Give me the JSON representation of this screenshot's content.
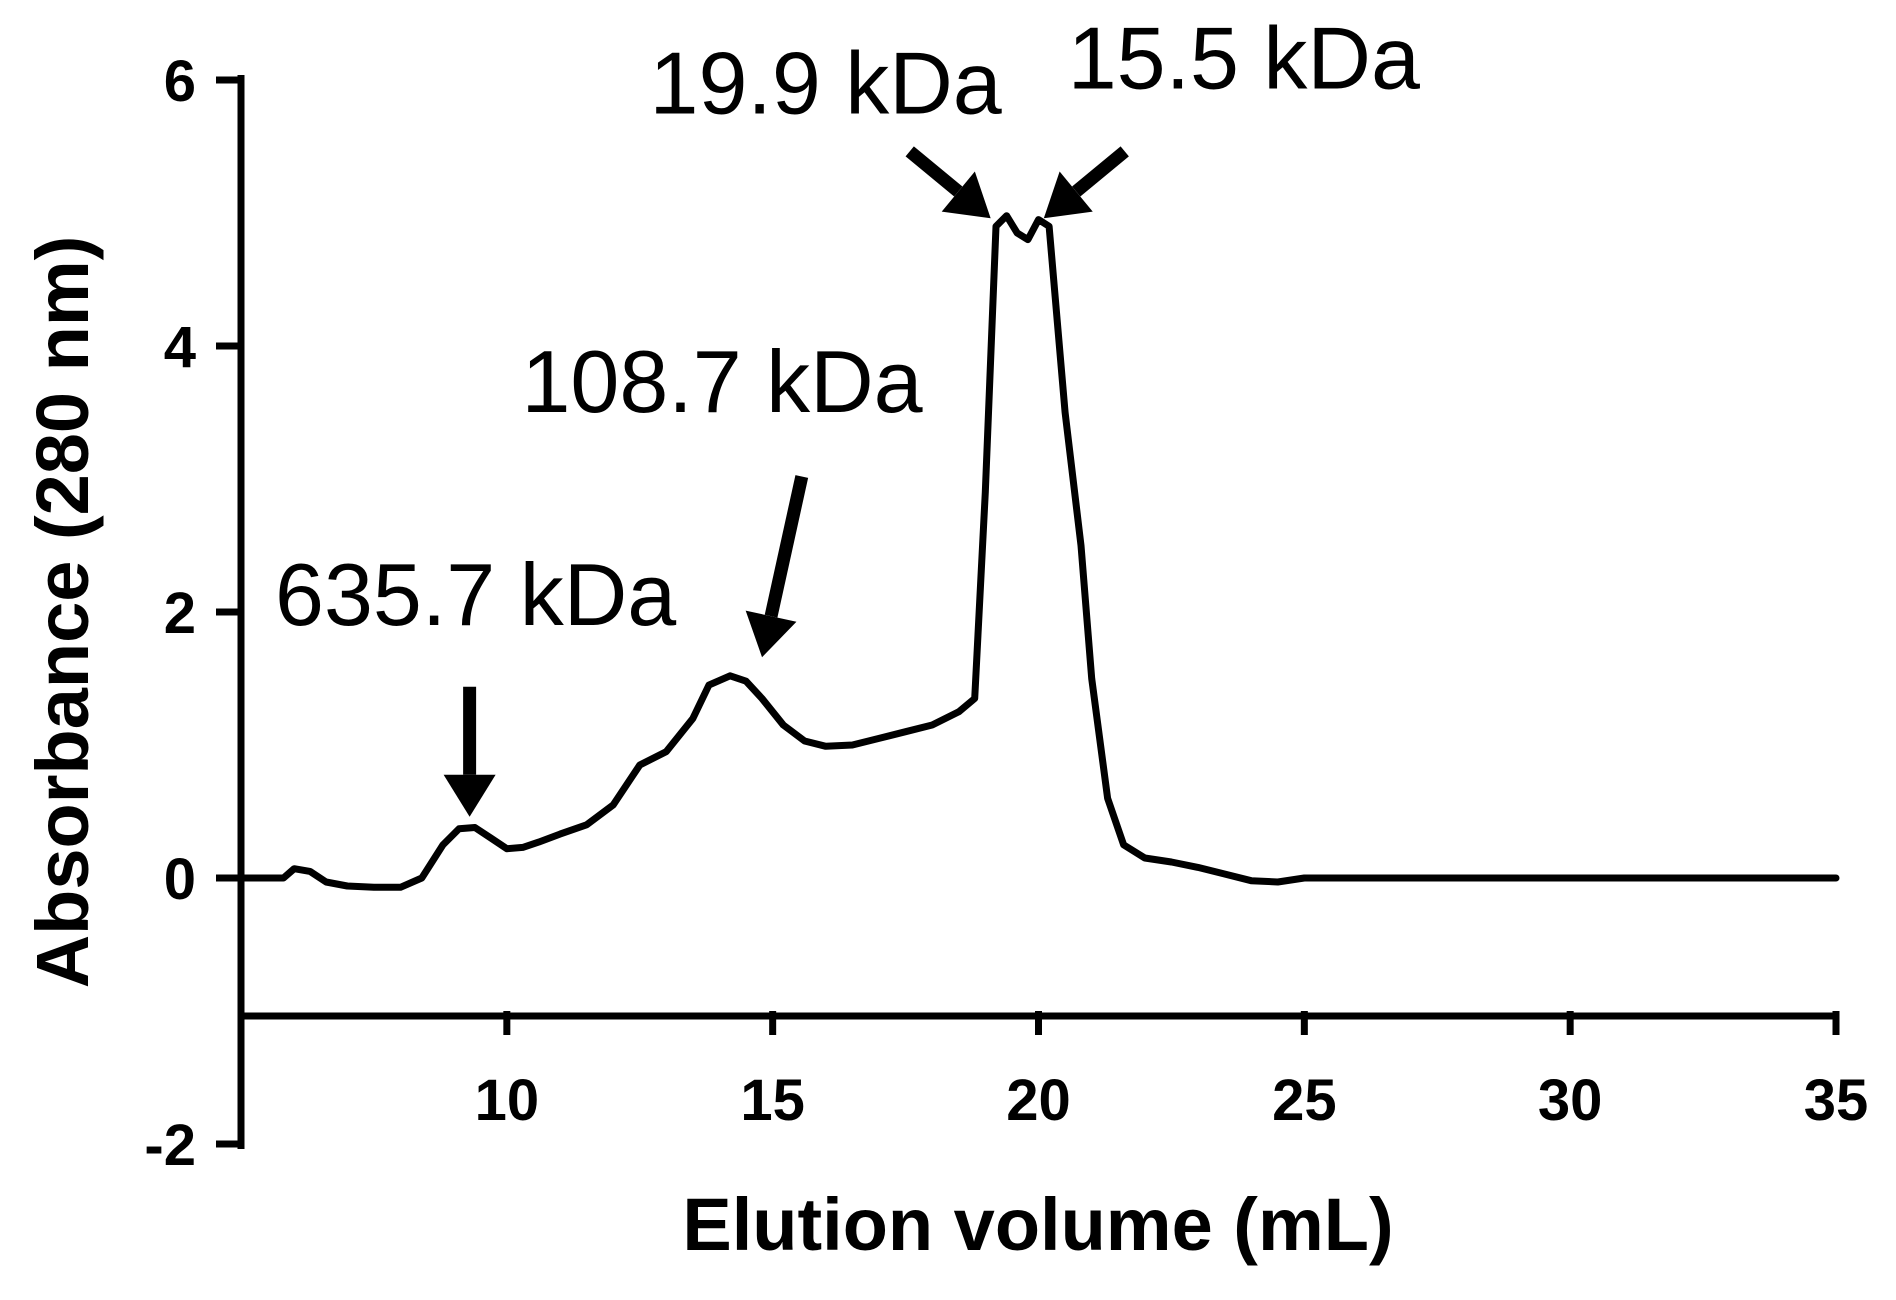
{
  "chart_data": {
    "type": "line",
    "title": "",
    "xlabel": "Elution volume (mL)",
    "ylabel": "Absorbance (280 nm)",
    "xlim": [
      5,
      35
    ],
    "ylim": [
      -2,
      6
    ],
    "x_baseline_y": -1,
    "xticks": [
      10,
      15,
      20,
      25,
      30,
      35
    ],
    "yticks": [
      -2,
      0,
      2,
      4,
      6
    ],
    "xtick_labels": [
      "10",
      "15",
      "20",
      "25",
      "30",
      "35"
    ],
    "ytick_labels": [
      "-2",
      "0",
      "2",
      "4",
      "6"
    ],
    "grid": false,
    "color": "#000000",
    "series": [
      {
        "x": [
          5.0,
          5.5,
          5.8,
          6.0,
          6.3,
          6.6,
          7.0,
          7.5,
          8.0,
          8.4,
          8.8,
          9.1,
          9.4,
          9.7,
          10.0,
          10.3,
          10.6,
          11.0,
          11.5,
          12.0,
          12.5,
          13.0,
          13.5,
          13.8,
          14.2,
          14.5,
          14.8,
          15.2,
          15.6,
          16.0,
          16.5,
          17.0,
          17.5,
          18.0,
          18.5,
          18.8,
          19.0,
          19.2,
          19.4,
          19.6,
          19.8,
          20.0,
          20.2,
          20.5,
          20.8,
          21.0,
          21.3,
          21.6,
          22.0,
          22.5,
          23.0,
          23.5,
          24.0,
          24.5,
          25.0,
          26.0,
          30.0,
          35.0
        ],
        "y": [
          0.0,
          0.0,
          0.0,
          0.07,
          0.05,
          -0.03,
          -0.06,
          -0.07,
          -0.07,
          0.0,
          0.25,
          0.37,
          0.38,
          0.3,
          0.22,
          0.23,
          0.27,
          0.33,
          0.4,
          0.55,
          0.85,
          0.95,
          1.2,
          1.45,
          1.52,
          1.48,
          1.35,
          1.15,
          1.03,
          0.99,
          1.0,
          1.05,
          1.1,
          1.15,
          1.25,
          1.35,
          2.9,
          4.9,
          4.98,
          4.85,
          4.8,
          4.95,
          4.9,
          3.5,
          2.5,
          1.5,
          0.6,
          0.25,
          0.15,
          0.12,
          0.08,
          0.03,
          -0.02,
          -0.03,
          0.0,
          0.0,
          0.0,
          0.0
        ]
      }
    ],
    "annotations": [
      {
        "text": "635.7 kDa",
        "x": 9.3,
        "y": 0.4
      },
      {
        "text": "108.7 kDa",
        "x": 14.8,
        "y": 1.6
      },
      {
        "text": "19.9 kDa",
        "x": 19.1,
        "y": 4.9
      },
      {
        "text": "15.5 kDa",
        "x": 20.1,
        "y": 4.9
      }
    ]
  }
}
